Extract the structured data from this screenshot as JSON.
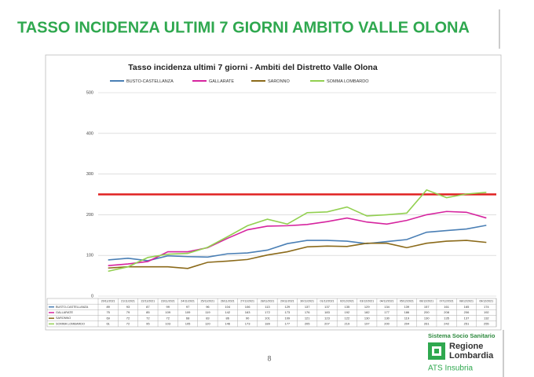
{
  "slide": {
    "title": "TASSO INCIDENZA ULTIMI 7 GIORNI AMBITO VALLE OLONA",
    "page_number": "8"
  },
  "logo": {
    "system": "Sistema Socio Sanitario",
    "brand_lines": [
      "Regione",
      "Lombardia"
    ],
    "agency": "ATS Insubria"
  },
  "chart_data": {
    "type": "line",
    "title": "Tasso incidenza ultimi 7 giorni - Ambiti del Distretto Valle Olona",
    "categories": [
      "20/11/2021",
      "21/11/2021",
      "22/11/2021",
      "23/11/2021",
      "24/11/2021",
      "25/11/2021",
      "26/11/2021",
      "27/11/2021",
      "28/11/2021",
      "29/11/2021",
      "30/11/2021",
      "01/12/2021",
      "02/12/2021",
      "03/12/2021",
      "04/12/2021",
      "05/12/2021",
      "06/12/2021",
      "07/12/2021",
      "08/12/2021",
      "09/12/2021"
    ],
    "series": [
      {
        "name": "BUSTO-CASTELLANZA",
        "color": "#4a7fb5",
        "values": [
          89,
          93,
          87,
          99,
          97,
          96,
          104,
          106,
          113,
          129,
          137,
          137,
          135,
          129,
          134,
          139,
          157,
          161,
          165,
          174
        ]
      },
      {
        "name": "GALLARATE",
        "color": "#d6249f",
        "values": [
          75,
          79,
          85,
          109,
          109,
          119,
          142,
          163,
          172,
          173,
          176,
          183,
          192,
          182,
          177,
          186,
          200,
          208,
          206,
          192
        ]
      },
      {
        "name": "SARONNO",
        "color": "#8b6a1a",
        "values": [
          69,
          72,
          72,
          72,
          68,
          83,
          86,
          90,
          101,
          109,
          121,
          123,
          122,
          130,
          130,
          119,
          130,
          135,
          137,
          132
        ]
      },
      {
        "name": "SOMMA LOMBARDO",
        "color": "#92d050",
        "values": [
          61,
          72,
          95,
          103,
          105,
          120,
          146,
          173,
          189,
          177,
          205,
          207,
          219,
          197,
          200,
          204,
          261,
          242,
          251,
          255
        ]
      }
    ],
    "threshold": 250,
    "threshold_color": "#e02020",
    "ylim": [
      0,
      500
    ],
    "yticks": [
      0,
      100,
      200,
      300,
      400,
      500
    ],
    "grid": true
  }
}
